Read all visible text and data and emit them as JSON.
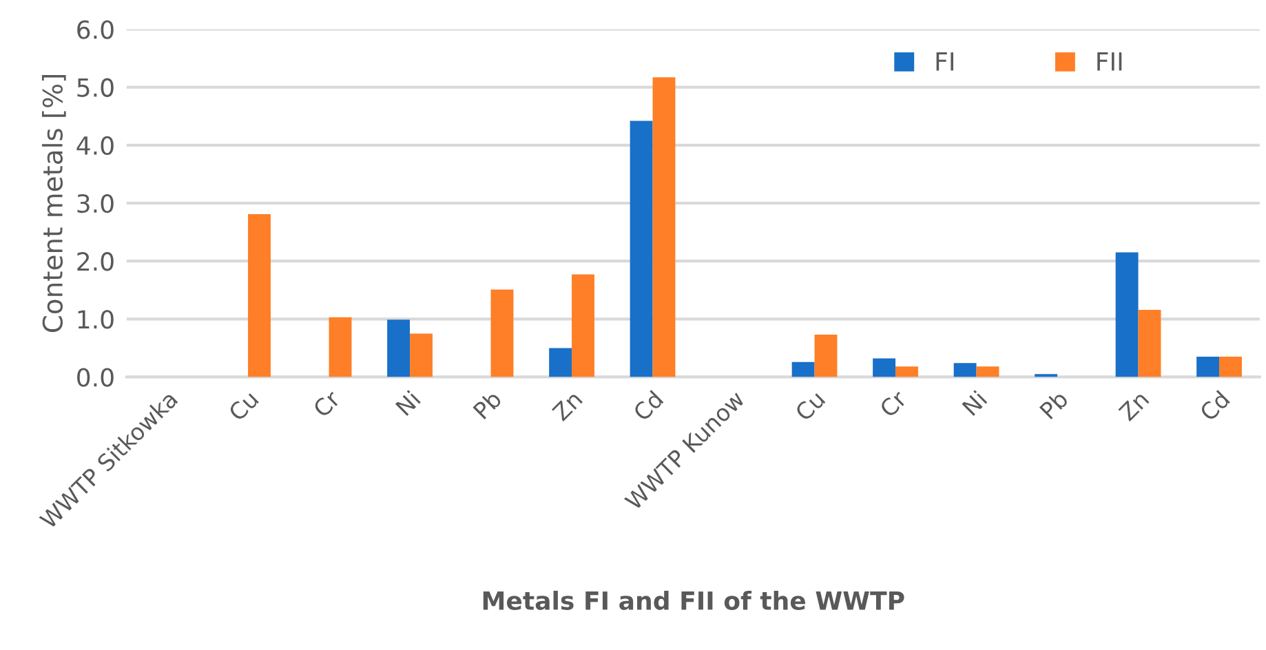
{
  "chart_data": {
    "type": "bar",
    "xlabel": "Metals FI and FII of the WWTP",
    "ylabel": "Content metals [%]",
    "categories": [
      "WWTP Sitkowka",
      "Cu",
      "Cr",
      "Ni",
      "Pb",
      "Zn",
      "Cd",
      "WWTP Kunow",
      "Cu",
      "Cr",
      "Ni",
      "Pb",
      "Zn",
      "Cd"
    ],
    "series": [
      {
        "name": "FI",
        "color": "#1870c8",
        "values": [
          null,
          null,
          null,
          0.99,
          null,
          0.5,
          4.42,
          null,
          0.26,
          0.32,
          0.24,
          0.05,
          2.15,
          0.35
        ]
      },
      {
        "name": "FII",
        "color": "#fe7f27",
        "values": [
          null,
          2.81,
          1.03,
          0.75,
          1.51,
          1.77,
          5.17,
          null,
          0.73,
          0.18,
          0.18,
          null,
          1.16,
          0.35
        ]
      }
    ],
    "ylim": [
      0,
      6
    ],
    "yticks": [
      {
        "value": 0,
        "label": "0.0"
      },
      {
        "value": 1,
        "label": "1.0"
      },
      {
        "value": 2,
        "label": "2.0"
      },
      {
        "value": 3,
        "label": "3.0"
      },
      {
        "value": 4,
        "label": "4.0"
      },
      {
        "value": 5,
        "label": "5.0"
      },
      {
        "value": 6,
        "label": "6.0"
      }
    ],
    "grid": "y",
    "legend": "top right"
  }
}
